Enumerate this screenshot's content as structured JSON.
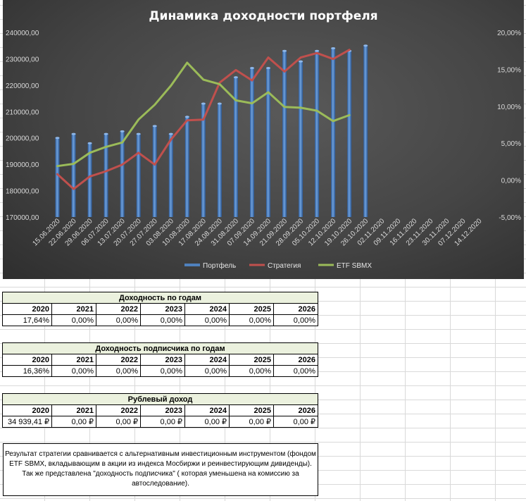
{
  "chart_data": {
    "type": "bar",
    "title": "Динамика доходности портфеля",
    "categories": [
      "15.06.2020",
      "22.06.2020",
      "29.06.2020",
      "06.07.2020",
      "13.07.2020",
      "20.07.2020",
      "27.07.2020",
      "03.08.2020",
      "10.08.2020",
      "17.08.2020",
      "24.08.2020",
      "31.08.2020",
      "07.09.2020",
      "14.09.2020",
      "21.09.2020",
      "28.09.2020",
      "05.10.2020",
      "12.10.2020",
      "19.10.2020",
      "26.10.2020",
      "02.11.2020",
      "09.11.2020",
      "16.11.2020",
      "23.11.2020",
      "30.11.2020",
      "07.12.2020",
      "14.12.2020"
    ],
    "series": [
      {
        "name": "Портфель",
        "kind": "bar",
        "axis": "left",
        "color": "#4f81bd",
        "values": [
          200000,
          201500,
          198000,
          201500,
          202500,
          201500,
          204500,
          201500,
          208000,
          213000,
          213000,
          223000,
          226500,
          226500,
          233000,
          229000,
          233000,
          234000,
          233000,
          235000,
          null,
          null,
          null,
          null,
          null,
          null,
          null
        ]
      },
      {
        "name": "Стратегия",
        "kind": "line",
        "axis": "right",
        "color": "#c0504d",
        "values": [
          0.8,
          -1.2,
          0.5,
          1.2,
          2.1,
          3.7,
          2.1,
          5.5,
          8.1,
          8.2,
          13.2,
          14.9,
          13.5,
          16.6,
          14.7,
          16.6,
          17.2,
          16.4,
          17.64,
          null,
          null,
          null,
          null,
          null,
          null,
          null,
          null
        ]
      },
      {
        "name": "ETF SBMX",
        "kind": "line",
        "axis": "right",
        "color": "#9bbb59",
        "values": [
          1.9,
          2.2,
          3.7,
          4.5,
          5.1,
          8.2,
          10.2,
          12.8,
          15.9,
          13.6,
          13.0,
          10.8,
          10.4,
          11.9,
          9.9,
          9.8,
          9.4,
          8.0,
          8.8,
          null,
          null,
          null,
          null,
          null,
          null,
          null,
          null
        ]
      }
    ],
    "left_axis": {
      "ylim": [
        170000,
        240000
      ],
      "ticks": [
        "170000,00",
        "180000,00",
        "190000,00",
        "200000,00",
        "210000,00",
        "220000,00",
        "230000,00",
        "240000,00"
      ]
    },
    "right_axis": {
      "ylim": [
        -5,
        20
      ],
      "ticks": [
        "-5,00%",
        "0,00%",
        "5,00%",
        "10,00%",
        "15,00%",
        "20,00%"
      ]
    },
    "legend_position": "bottom"
  },
  "tables": [
    {
      "title": "Доходность по годам",
      "years": [
        "2020",
        "2021",
        "2022",
        "2023",
        "2024",
        "2025",
        "2026"
      ],
      "values": [
        "17,64%",
        "0,00%",
        "0,00%",
        "0,00%",
        "0,00%",
        "0,00%",
        "0,00%"
      ]
    },
    {
      "title": "Доходность подписчика по годам",
      "years": [
        "2020",
        "2021",
        "2022",
        "2023",
        "2024",
        "2025",
        "2026"
      ],
      "values": [
        "16,36%",
        "0,00%",
        "0,00%",
        "0,00%",
        "0,00%",
        "0,00%",
        "0,00%"
      ]
    },
    {
      "title": "Рублевый доход",
      "years": [
        "2020",
        "2021",
        "2022",
        "2023",
        "2024",
        "2025",
        "2026"
      ],
      "values": [
        "34 939,41 ₽",
        "0,00 ₽",
        "0,00 ₽",
        "0,00 ₽",
        "0,00 ₽",
        "0,00 ₽",
        "0,00 ₽"
      ]
    }
  ],
  "note": "Результат стратегии сравнивается с альтернативным инвестиционным инструментом (фондом ETF SBMX, вкладывающим в акции из индекса Мосбиржи и реинвестирующим дивиденды). Так же представлена \"доходность подписчика\" ( которая уменьшена на комиссию за автоследование)."
}
